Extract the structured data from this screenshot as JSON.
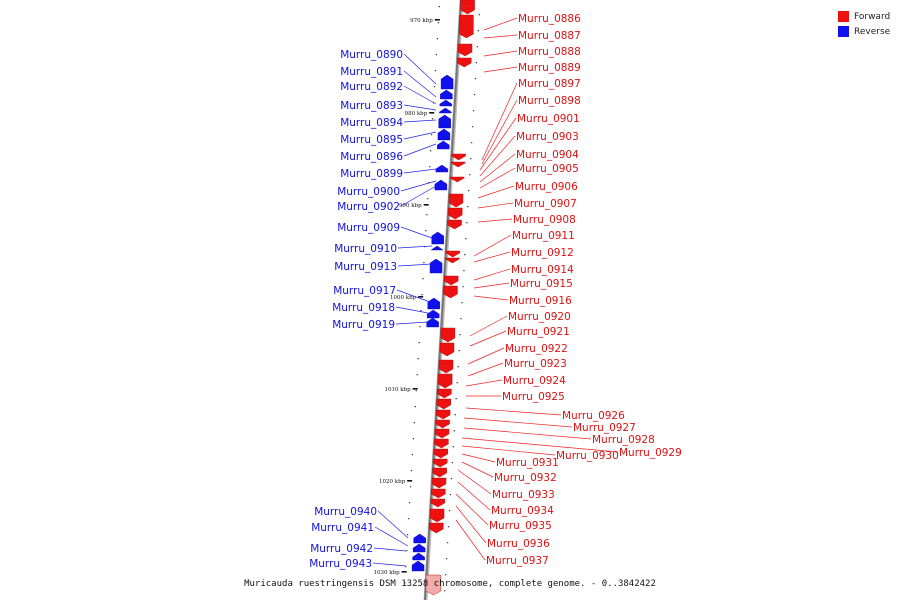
{
  "legend": {
    "items": [
      {
        "label": "Forward",
        "color": "#ee1111"
      },
      {
        "label": "Reverse",
        "color": "#1111ee"
      }
    ]
  },
  "caption": "Muricauda ruestringensis DSM 13258 chromosome, complete genome. - 0..3842422",
  "colors": {
    "forward": "#ee1111",
    "reverse": "#1111ee",
    "backbone": "#777777",
    "line_fwd": "#ee2222",
    "line_rev": "#2222ee"
  },
  "scale_labels": [
    "970 kbp",
    "980 kbp",
    "990 kbp",
    "1000 kbp",
    "1010 kbp",
    "1020 kbp",
    "1030 kbp"
  ],
  "reverse_labels": [
    "Murru_0890",
    "Murru_0891",
    "Murru_0892",
    "Murru_0893",
    "Murru_0894",
    "Murru_0895",
    "Murru_0896",
    "Murru_0899",
    "Murru_0900",
    "Murru_0902",
    "Murru_0909",
    "Murru_0910",
    "Murru_0913",
    "Murru_0917",
    "Murru_0918",
    "Murru_0919",
    "Murru_0940",
    "Murru_0941",
    "Murru_0942",
    "Murru_0943"
  ],
  "forward_labels": [
    "Murru_0886",
    "Murru_0887",
    "Murru_0888",
    "Murru_0889",
    "Murru_0897",
    "Murru_0898",
    "Murru_0901",
    "Murru_0903",
    "Murru_0904",
    "Murru_0905",
    "Murru_0906",
    "Murru_0907",
    "Murru_0908",
    "Murru_0911",
    "Murru_0912",
    "Murru_0914",
    "Murru_0915",
    "Murru_0916",
    "Murru_0920",
    "Murru_0921",
    "Murru_0922",
    "Murru_0923",
    "Murru_0924",
    "Murru_0925",
    "Murru_0926",
    "Murru_0927",
    "Murru_0928",
    "Murru_0929",
    "Murru_0930",
    "Murru_0931",
    "Murru_0932",
    "Murru_0933",
    "Murru_0934",
    "Murru_0935",
    "Murru_0936",
    "Murru_0937"
  ]
}
